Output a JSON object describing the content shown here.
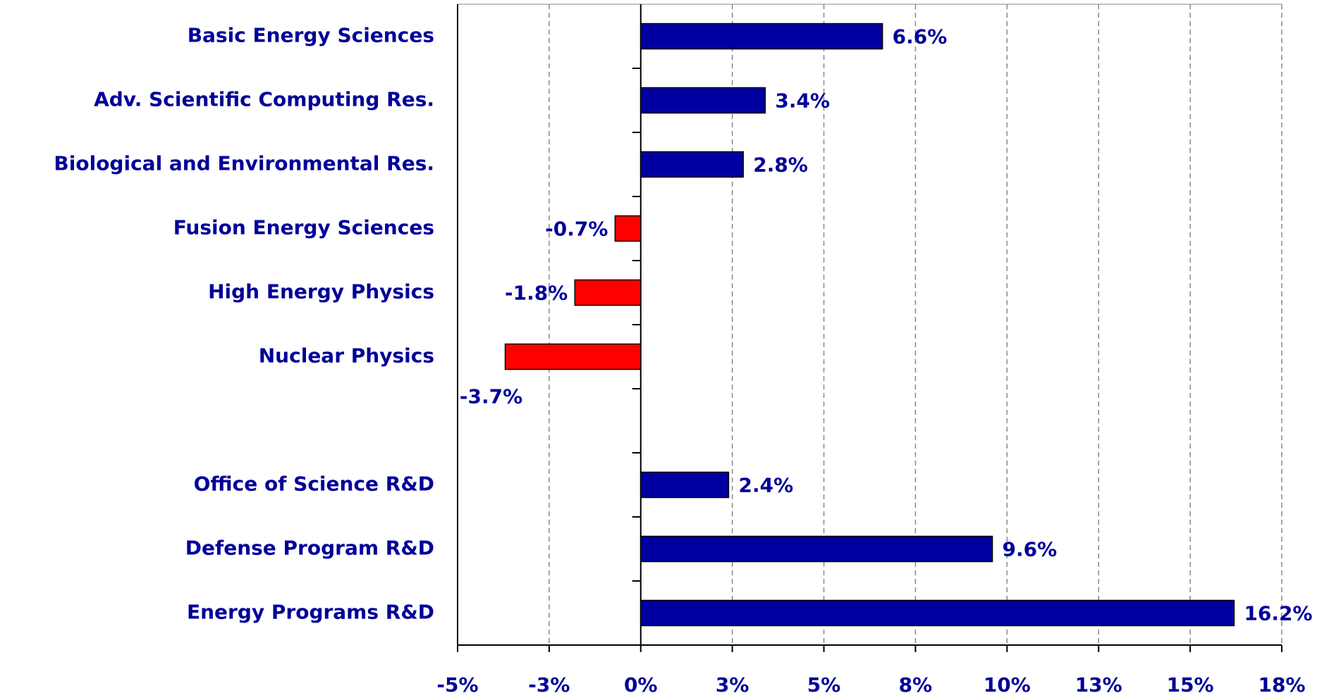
{
  "chart_data": {
    "type": "hbar",
    "categories": [
      "Basic Energy Sciences",
      "Adv. Scientific Computing Res.",
      "Biological and Environmental Res.",
      "Fusion Energy Sciences",
      "High Energy Physics",
      "Nuclear Physics",
      null,
      "Office of Science R&D",
      "Defense Program R&D",
      "Energy Programs R&D"
    ],
    "values": [
      6.6,
      3.4,
      2.8,
      -0.7,
      -1.8,
      -3.7,
      null,
      2.4,
      9.6,
      16.2
    ],
    "value_labels": [
      "6.6%",
      "3.4%",
      "2.8%",
      "-0.7%",
      "-1.8%",
      "-3.7%",
      null,
      "2.4%",
      "9.6%",
      "16.2%"
    ],
    "color": "#0000a0",
    "negative_color": "#ff0000",
    "xlim": [
      -5,
      17.5
    ],
    "xticks": [
      {
        "value": -5,
        "label": "-5%"
      },
      {
        "value": -2.5,
        "label": "-3%"
      },
      {
        "value": 0,
        "label": "0%"
      },
      {
        "value": 2.5,
        "label": "3%"
      },
      {
        "value": 5,
        "label": "5%"
      },
      {
        "value": 7.5,
        "label": "8%"
      },
      {
        "value": 10,
        "label": "10%"
      },
      {
        "value": 12.5,
        "label": "13%"
      },
      {
        "value": 15,
        "label": "15%"
      },
      {
        "value": 17.5,
        "label": "18%"
      }
    ],
    "grid": true
  }
}
